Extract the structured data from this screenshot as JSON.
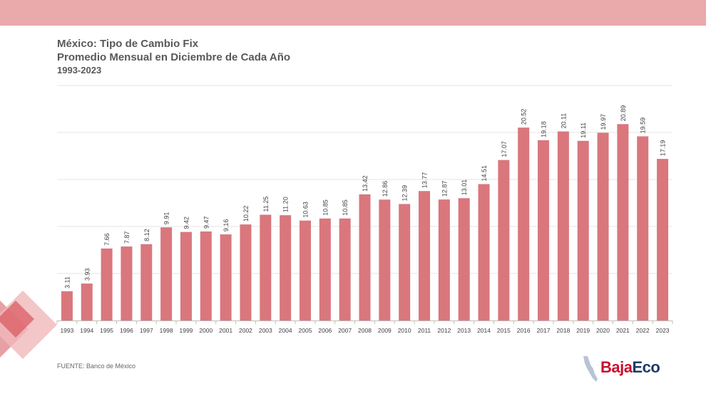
{
  "header": {
    "title": "México: Tipo de Cambio Fix",
    "subtitle": "Promedio Mensual en Diciembre de Cada Año",
    "years": "1993-2023"
  },
  "footer": {
    "source": "FUENTE: Banco de México",
    "logo_part1": "Baja",
    "logo_part2": "Eco"
  },
  "colors": {
    "band": "#eaa9ab",
    "bar": "#d9777d",
    "grid": "#e6e6e6",
    "axis": "#bfbfbf",
    "label": "#404040"
  },
  "chart_data": {
    "type": "bar",
    "title": "México: Tipo de Cambio Fix",
    "subtitle": "Promedio Mensual en Diciembre de Cada Año",
    "categories": [
      "1993",
      "1994",
      "1995",
      "1996",
      "1997",
      "1998",
      "1999",
      "2000",
      "2001",
      "2002",
      "2003",
      "2004",
      "2005",
      "2006",
      "2007",
      "2008",
      "2009",
      "2010",
      "2011",
      "2012",
      "2013",
      "2014",
      "2015",
      "2016",
      "2017",
      "2018",
      "2019",
      "2020",
      "2021",
      "2022",
      "2023"
    ],
    "values": [
      3.11,
      3.93,
      7.66,
      7.87,
      8.12,
      9.91,
      9.42,
      9.47,
      9.16,
      10.22,
      11.25,
      11.2,
      10.63,
      10.85,
      10.85,
      13.42,
      12.86,
      12.39,
      13.77,
      12.87,
      13.01,
      14.51,
      17.07,
      20.52,
      19.18,
      20.11,
      19.11,
      19.97,
      20.89,
      19.59,
      17.19
    ],
    "data_labels": [
      "3.11",
      "3.93",
      "7.66",
      "7.87",
      "8.12",
      "9.91",
      "9.42",
      "9.47",
      "9.16",
      "10.22",
      "11.25",
      "11.20",
      "10.63",
      "10.85",
      "10.85",
      "13.42",
      "12.86",
      "12.39",
      "13.77",
      "12.87",
      "13.01",
      "14.51",
      "17.07",
      "20.52",
      "19.18",
      "20.11",
      "19.11",
      "19.97",
      "20.89",
      "19.59",
      "17.19"
    ],
    "xlabel": "",
    "ylabel": "",
    "ylim": [
      0,
      25
    ],
    "grid": true,
    "legend": "none"
  }
}
